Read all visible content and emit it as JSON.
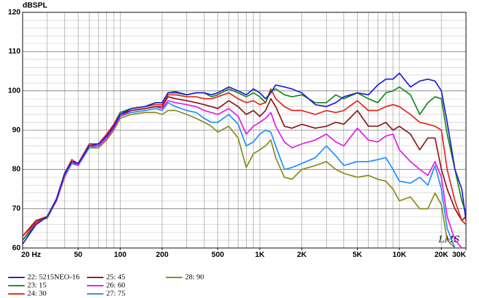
{
  "chart_data": {
    "type": "line",
    "ylabel": "dBSPL",
    "annotation": "LMS",
    "x_scale": "log",
    "x": [
      20,
      25,
      30,
      35,
      40,
      45,
      50,
      60,
      70,
      80,
      90,
      100,
      120,
      150,
      180,
      200,
      220,
      250,
      300,
      350,
      400,
      450,
      500,
      600,
      700,
      800,
      900,
      1000,
      1100,
      1200,
      1300,
      1500,
      1700,
      2000,
      2500,
      3000,
      3500,
      4000,
      5000,
      6000,
      7000,
      8000,
      9000,
      10000,
      12000,
      14000,
      16000,
      18000,
      20000,
      22000,
      25000,
      28000,
      30000
    ],
    "series": [
      {
        "name": "22: 5215NEO-16",
        "color": "#1f1fd6",
        "values": [
          61,
          66,
          68,
          72.5,
          79,
          82,
          81.5,
          86,
          86.5,
          88.5,
          91,
          94,
          95.5,
          96,
          97,
          97,
          99.5,
          99.8,
          99,
          99.5,
          99.5,
          99,
          99.5,
          101,
          100,
          99,
          100.5,
          99.5,
          98,
          99.5,
          101.5,
          101,
          100.5,
          99.5,
          96.5,
          96,
          97,
          98.5,
          99.5,
          99,
          101.5,
          103,
          103,
          104.5,
          101,
          102.5,
          103,
          102.5,
          100,
          92,
          80,
          75,
          67
        ]
      },
      {
        "name": "23: 15",
        "color": "#1a8a1a",
        "values": [
          62,
          66,
          68,
          72.5,
          79,
          82,
          81.5,
          86,
          86.5,
          88.5,
          91,
          94.5,
          95.5,
          96,
          97,
          97,
          99.5,
          99.5,
          99,
          99.5,
          99.5,
          98.5,
          99,
          100.5,
          99.5,
          98.5,
          99.5,
          98.5,
          97,
          100,
          100.5,
          99,
          98.5,
          99,
          97,
          97,
          99,
          98,
          99.5,
          98,
          97,
          99.5,
          100,
          101,
          99,
          94,
          97,
          98.5,
          98,
          89,
          80,
          72,
          69
        ]
      },
      {
        "name": "24: 30",
        "color": "#e8231a",
        "values": [
          63,
          66.5,
          68,
          72.5,
          79,
          82.5,
          81.5,
          86.5,
          86.5,
          89,
          91.5,
          94.5,
          95.5,
          96,
          96.5,
          96.5,
          99,
          99,
          98.5,
          98.5,
          98,
          98,
          98.5,
          99.5,
          98,
          97,
          97.5,
          96.5,
          97,
          100.5,
          98,
          96,
          95,
          95,
          94,
          95,
          94.5,
          95,
          97.5,
          95,
          95,
          96,
          96.5,
          96,
          94,
          92,
          91.5,
          91,
          90,
          80,
          72,
          67,
          66
        ]
      },
      {
        "name": "25: 45",
        "color": "#8b1a1a",
        "values": [
          63,
          67,
          68,
          72.5,
          79,
          82,
          81.5,
          86,
          86.5,
          88.5,
          91,
          94,
          95,
          95.5,
          96,
          96,
          98.5,
          98,
          97.5,
          97,
          96.5,
          96,
          95.5,
          97.5,
          96,
          94,
          95,
          93.5,
          95,
          98,
          96,
          91,
          90.5,
          91.5,
          90.5,
          91,
          92,
          91.5,
          95,
          91,
          91,
          92,
          90,
          91,
          89,
          85,
          88,
          88,
          80,
          75,
          70,
          67,
          68
        ]
      },
      {
        "name": "26: 60",
        "color": "#e81ae8",
        "values": [
          62,
          66.5,
          68,
          72,
          78.5,
          82,
          81,
          86,
          86,
          88,
          90.5,
          93.5,
          95,
          95.5,
          96,
          95.5,
          97.5,
          97,
          96.5,
          96,
          95,
          94.5,
          94,
          95.5,
          93.5,
          89,
          91,
          92,
          93,
          94.5,
          91,
          87,
          85.5,
          86.5,
          87.5,
          89,
          87,
          86,
          90.5,
          87.5,
          87,
          88.5,
          89,
          85,
          82,
          80,
          78.5,
          82,
          78,
          68,
          62,
          60,
          60
        ]
      },
      {
        "name": "27: 75",
        "color": "#1e90ff",
        "values": [
          62,
          66,
          68,
          72,
          78.5,
          81.5,
          81,
          85.5,
          86,
          88,
          90.5,
          93.5,
          94.5,
          95,
          95.5,
          95,
          97,
          96,
          95,
          94.5,
          93,
          92,
          92,
          94,
          91.5,
          86,
          87,
          89,
          90,
          89.5,
          86,
          80,
          80.5,
          81.5,
          83,
          86,
          83.5,
          81,
          82,
          82,
          82.5,
          83,
          80,
          77,
          76.5,
          78,
          76,
          81,
          75,
          65,
          60,
          60,
          60
        ]
      },
      {
        "name": "28: 90",
        "color": "#8b8b1a",
        "values": [
          63,
          67,
          67.5,
          72,
          78,
          81.5,
          81,
          85.5,
          85.5,
          87.5,
          90,
          93,
          94,
          94.5,
          94.5,
          94,
          95,
          95,
          94,
          93,
          92,
          91,
          89.5,
          91,
          88,
          80.5,
          84,
          85,
          86,
          87.5,
          83,
          78,
          77.5,
          80,
          81,
          82,
          80,
          79,
          78,
          78.5,
          77.5,
          77,
          75,
          72,
          73,
          70,
          70,
          74,
          71,
          62,
          60,
          60,
          60
        ]
      }
    ],
    "xlim": [
      20,
      30000
    ],
    "xticks": [
      {
        "value": 20,
        "label": "20 Hz"
      },
      50,
      100,
      200,
      500,
      {
        "value": 1000,
        "label": "1K"
      },
      {
        "value": 2000,
        "label": "2K"
      },
      {
        "value": 5000,
        "label": "5K"
      },
      {
        "value": 10000,
        "label": "10K"
      },
      {
        "value": 20000,
        "label": "20K"
      },
      {
        "value": 30000,
        "label": "30K"
      }
    ],
    "xgrid": [
      30,
      40,
      50,
      60,
      70,
      80,
      90,
      100,
      200,
      300,
      400,
      500,
      600,
      700,
      800,
      900,
      1000,
      2000,
      3000,
      4000,
      5000,
      6000,
      7000,
      8000,
      9000,
      10000,
      20000
    ],
    "ylim": [
      60,
      120
    ],
    "yticks": [
      60,
      70,
      80,
      90,
      100,
      110,
      120
    ],
    "ygrid": [
      62,
      64,
      66,
      68,
      72,
      74,
      76,
      78,
      82,
      84,
      86,
      88,
      92,
      94,
      96,
      98,
      102,
      104,
      106,
      108,
      112,
      114,
      116,
      118
    ]
  }
}
